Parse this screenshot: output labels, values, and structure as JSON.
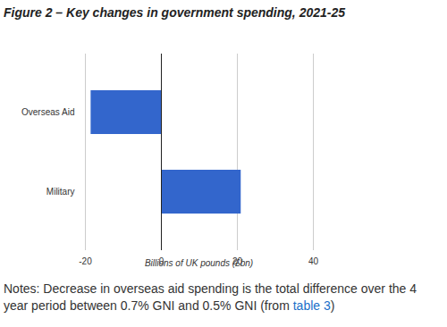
{
  "chart_data": {
    "type": "bar",
    "orientation": "horizontal",
    "title": "Figure 2 – Key changes in government spending, 2021-25",
    "xlabel": "Billions of UK pounds (£bn)",
    "categories": [
      "Overseas Aid",
      "Military"
    ],
    "values": [
      -18.5,
      21
    ],
    "color": "#3366cc",
    "xlim": [
      -20,
      40
    ],
    "xticks": [
      -20,
      0,
      20,
      40
    ],
    "grid": true,
    "data_labels": false,
    "notes": "Notes: Decrease in overseas aid spending is the total difference over the 4 year period between 0.7% GNI and 0.5% GNI (from table 3)",
    "notes_link": "table 3"
  }
}
